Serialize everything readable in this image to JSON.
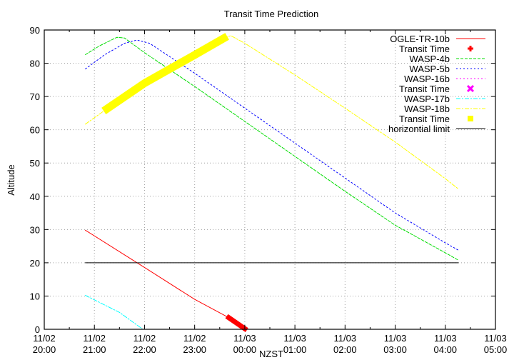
{
  "chart_data": {
    "type": "line",
    "title": "Transit Time Prediction",
    "xlabel": "NZST",
    "ylabel": "Altitude",
    "ylim": [
      0,
      90
    ],
    "yticks": [
      0,
      10,
      20,
      30,
      40,
      50,
      60,
      70,
      80,
      90
    ],
    "xlim_hours": [
      0,
      9
    ],
    "xticks": [
      {
        "h": 0,
        "date": "11/02",
        "time": "20:00"
      },
      {
        "h": 1,
        "date": "11/02",
        "time": "21:00"
      },
      {
        "h": 2,
        "date": "11/02",
        "time": "22:00"
      },
      {
        "h": 3,
        "date": "11/02",
        "time": "23:00"
      },
      {
        "h": 4,
        "date": "11/03",
        "time": "00:00"
      },
      {
        "h": 5,
        "date": "11/03",
        "time": "01:00"
      },
      {
        "h": 6,
        "date": "11/03",
        "time": "02:00"
      },
      {
        "h": 7,
        "date": "11/03",
        "time": "03:00"
      },
      {
        "h": 8,
        "date": "11/03",
        "time": "04:00"
      },
      {
        "h": 9,
        "date": "11/03",
        "time": "05:00"
      }
    ],
    "grid": true,
    "legend_position": "top-right",
    "x_units": "hours since 11/02 20:00 NZST",
    "series": [
      {
        "name": "OGLE-TR-10b",
        "color": "#ff0000",
        "style": "solid",
        "points": [
          [
            0.82,
            29.8
          ],
          [
            2.0,
            18.6
          ],
          [
            3.0,
            9.0
          ],
          [
            3.68,
            3.5
          ],
          [
            4.0,
            0.2
          ]
        ]
      },
      {
        "name": "Transit Time",
        "color": "#ff0000",
        "style": "thick",
        "marker": "plus",
        "points": [
          [
            3.68,
            3.5
          ],
          [
            4.0,
            0.2
          ]
        ]
      },
      {
        "name": "WASP-4b",
        "color": "#00dd00",
        "style": "dashed",
        "points": [
          [
            0.82,
            82.6
          ],
          [
            1.1,
            85.2
          ],
          [
            1.45,
            87.8
          ],
          [
            1.6,
            87.6
          ],
          [
            2.0,
            83.2
          ],
          [
            3.0,
            73.0
          ],
          [
            4.0,
            62.5
          ],
          [
            5.0,
            52.0
          ],
          [
            6.0,
            41.5
          ],
          [
            7.0,
            31.3
          ],
          [
            8.0,
            23.0
          ],
          [
            8.26,
            20.8
          ]
        ]
      },
      {
        "name": "WASP-5b",
        "color": "#0000ff",
        "style": "dotted",
        "points": [
          [
            0.82,
            78.3
          ],
          [
            1.2,
            82.5
          ],
          [
            1.6,
            86.0
          ],
          [
            1.85,
            87.0
          ],
          [
            2.1,
            86.0
          ],
          [
            3.0,
            77.0
          ],
          [
            4.0,
            66.5
          ],
          [
            5.0,
            56.0
          ],
          [
            6.0,
            45.5
          ],
          [
            7.0,
            35.0
          ],
          [
            8.0,
            26.0
          ],
          [
            8.26,
            23.8
          ]
        ]
      },
      {
        "name": "WASP-16b",
        "color": "#ff00ff",
        "style": "dotted",
        "points": []
      },
      {
        "name": "Transit Time",
        "color": "#ff00ff",
        "style": "marker",
        "marker": "cross",
        "points": []
      },
      {
        "name": "WASP-17b",
        "color": "#00ffff",
        "style": "dash-dot",
        "points": [
          [
            0.82,
            10.2
          ],
          [
            1.5,
            5.1
          ],
          [
            1.95,
            0.2
          ]
        ]
      },
      {
        "name": "WASP-18b",
        "color": "#ffff00",
        "style": "dash-dot",
        "points": [
          [
            0.82,
            61.7
          ],
          [
            1.25,
            66.3
          ],
          [
            2.0,
            74.0
          ],
          [
            3.0,
            82.5
          ],
          [
            3.58,
            87.5
          ],
          [
            3.72,
            88.3
          ],
          [
            4.0,
            86.0
          ],
          [
            5.0,
            76.5
          ],
          [
            6.0,
            66.5
          ],
          [
            7.0,
            56.3
          ],
          [
            8.0,
            45.3
          ],
          [
            8.26,
            42.2
          ]
        ]
      },
      {
        "name": "Transit Time",
        "color": "#ffff00",
        "style": "thick",
        "marker": "square",
        "points": [
          [
            1.25,
            66.3
          ],
          [
            2.0,
            74.0
          ],
          [
            3.0,
            82.5
          ],
          [
            3.58,
            87.5
          ]
        ]
      },
      {
        "name": "horizontial limit",
        "color": "#000000",
        "style": "solid",
        "points": [
          [
            0.82,
            20.0
          ],
          [
            8.26,
            20.0
          ]
        ]
      }
    ]
  },
  "legend": {
    "entries": [
      {
        "label": "OGLE-TR-10b",
        "color": "#ff0000",
        "kind": "line-solid"
      },
      {
        "label": "Transit Time",
        "color": "#ff0000",
        "kind": "plus"
      },
      {
        "label": "WASP-4b",
        "color": "#00dd00",
        "kind": "line-dashed"
      },
      {
        "label": "WASP-5b",
        "color": "#0000ff",
        "kind": "line-dotted"
      },
      {
        "label": "WASP-16b",
        "color": "#ff00ff",
        "kind": "line-dotted"
      },
      {
        "label": "Transit Time",
        "color": "#ff00ff",
        "kind": "cross"
      },
      {
        "label": "WASP-17b",
        "color": "#00ffff",
        "kind": "line-dashdot"
      },
      {
        "label": "WASP-18b",
        "color": "#ffff00",
        "kind": "line-dashdot"
      },
      {
        "label": "Transit Time",
        "color": "#ffff00",
        "kind": "square"
      },
      {
        "label": "horizontial limit",
        "color": "#000000",
        "kind": "line-solid"
      }
    ]
  }
}
